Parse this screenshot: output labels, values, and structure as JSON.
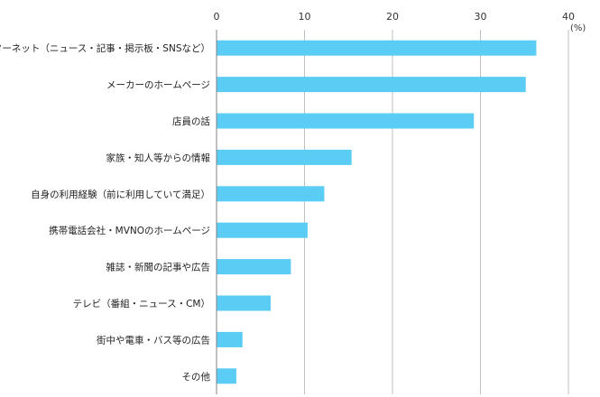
{
  "chart_data": {
    "type": "bar",
    "orientation": "horizontal",
    "categories": [
      "インターネット（ニュース・記事・掲示板・SNSなど）",
      "メーカーのホームページ",
      "店員の話",
      "家族・知人等からの情報",
      "自身の利用経験（前に利用していて満足）",
      "携帯電話会社・MVNOのホームページ",
      "雑誌・新聞の記事や広告",
      "テレビ（番組・ニュース・CM）",
      "街中や電車・バス等の広告",
      "その他"
    ],
    "values": [
      36.3,
      35.1,
      29.2,
      15.3,
      12.2,
      10.3,
      8.4,
      6.1,
      2.9,
      2.2
    ],
    "xlim": [
      0,
      40
    ],
    "ticks": [
      0,
      10,
      20,
      30,
      40
    ],
    "unit": "(%)",
    "bar_color": "#5bcdf5",
    "grid": true,
    "grid_color": "#bfbfbf"
  }
}
